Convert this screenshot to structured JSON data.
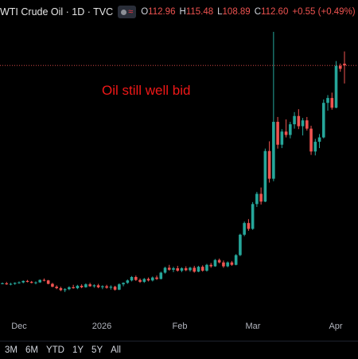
{
  "header": {
    "title": "WTI Crude Oil · 1D · TVC",
    "ohlc": [
      {
        "k": "O",
        "v": "112.96"
      },
      {
        "k": "H",
        "v": "115.48"
      },
      {
        "k": "L",
        "v": "108.89"
      },
      {
        "k": "C",
        "v": "112.60"
      }
    ],
    "change": "+0.55 (+0.49%)"
  },
  "annotation": "Oil still well bid",
  "range_buttons": [
    "3M",
    "6M",
    "YTD",
    "1Y",
    "5Y",
    "All"
  ],
  "colors": {
    "up": "#26a69a",
    "down": "#ef5350",
    "annotation": "#f01818",
    "background": "#000000"
  },
  "chart_data": {
    "type": "candlestick",
    "x_ticks": [
      "Dec",
      "2026",
      "Feb",
      "Mar",
      "Apr"
    ],
    "reference_line": 112.6,
    "candles": [
      [
        67.8,
        68.0,
        67.6,
        67.8
      ],
      [
        67.8,
        68.1,
        67.5,
        67.6
      ],
      [
        67.6,
        67.9,
        67.4,
        67.7
      ],
      [
        67.7,
        68.0,
        67.5,
        67.9
      ],
      [
        67.9,
        68.2,
        67.7,
        68.0
      ],
      [
        68.0,
        68.4,
        67.8,
        68.3
      ],
      [
        68.3,
        68.5,
        68.0,
        68.1
      ],
      [
        68.1,
        68.3,
        67.8,
        67.9
      ],
      [
        67.9,
        68.2,
        67.6,
        68.0
      ],
      [
        68.0,
        68.6,
        67.9,
        68.5
      ],
      [
        68.5,
        68.8,
        68.2,
        68.4
      ],
      [
        68.4,
        68.5,
        67.6,
        67.7
      ],
      [
        67.7,
        67.9,
        67.0,
        67.1
      ],
      [
        67.1,
        67.4,
        66.6,
        66.8
      ],
      [
        66.8,
        67.1,
        66.2,
        66.4
      ],
      [
        66.4,
        66.8,
        66.0,
        66.6
      ],
      [
        66.6,
        67.2,
        66.4,
        67.0
      ],
      [
        67.0,
        67.5,
        66.7,
        66.8
      ],
      [
        66.8,
        67.5,
        66.6,
        67.3
      ],
      [
        67.3,
        67.6,
        66.8,
        67.0
      ],
      [
        67.0,
        67.8,
        66.9,
        67.6
      ],
      [
        67.6,
        67.9,
        67.1,
        67.2
      ],
      [
        67.2,
        67.6,
        66.9,
        67.4
      ],
      [
        67.4,
        67.7,
        66.8,
        67.0
      ],
      [
        67.0,
        67.4,
        66.6,
        67.2
      ],
      [
        67.2,
        67.5,
        66.7,
        66.9
      ],
      [
        66.9,
        67.4,
        66.5,
        67.1
      ],
      [
        67.1,
        67.3,
        66.3,
        66.5
      ],
      [
        66.5,
        67.8,
        66.4,
        67.6
      ],
      [
        67.6,
        68.0,
        67.2,
        67.9
      ],
      [
        67.9,
        68.6,
        67.7,
        68.4
      ],
      [
        68.4,
        69.3,
        68.2,
        69.1
      ],
      [
        69.1,
        69.4,
        68.3,
        68.5
      ],
      [
        68.5,
        68.8,
        67.9,
        68.1
      ],
      [
        68.1,
        68.9,
        67.9,
        68.7
      ],
      [
        68.7,
        69.0,
        68.2,
        68.4
      ],
      [
        68.4,
        69.2,
        68.2,
        69.0
      ],
      [
        69.0,
        69.4,
        68.5,
        68.7
      ],
      [
        68.7,
        70.2,
        68.6,
        70.0
      ],
      [
        70.0,
        71.2,
        69.8,
        71.0
      ],
      [
        71.0,
        71.6,
        70.4,
        70.6
      ],
      [
        70.6,
        71.2,
        70.1,
        70.9
      ],
      [
        70.9,
        71.4,
        70.2,
        70.4
      ],
      [
        70.4,
        71.1,
        70.1,
        70.9
      ],
      [
        70.9,
        71.3,
        70.3,
        70.5
      ],
      [
        70.5,
        71.2,
        70.2,
        71.0
      ],
      [
        71.0,
        71.4,
        70.0,
        70.2
      ],
      [
        70.2,
        71.4,
        70.1,
        71.2
      ],
      [
        71.2,
        71.5,
        70.2,
        70.4
      ],
      [
        70.4,
        71.8,
        70.2,
        71.6
      ],
      [
        71.6,
        72.0,
        71.0,
        71.3
      ],
      [
        71.3,
        72.8,
        71.2,
        72.6
      ],
      [
        72.6,
        72.9,
        71.9,
        72.1
      ],
      [
        72.1,
        72.5,
        71.0,
        71.3
      ],
      [
        71.3,
        72.3,
        71.1,
        72.1
      ],
      [
        72.1,
        72.4,
        71.4,
        71.6
      ],
      [
        71.6,
        73.8,
        71.5,
        73.6
      ],
      [
        73.6,
        78.0,
        73.4,
        77.8
      ],
      [
        77.8,
        80.5,
        77.5,
        80.2
      ],
      [
        80.2,
        81.0,
        78.6,
        79.0
      ],
      [
        79.0,
        84.5,
        78.8,
        84.1
      ],
      [
        84.1,
        86.6,
        83.5,
        86.2
      ],
      [
        86.2,
        87.5,
        84.0,
        84.6
      ],
      [
        84.6,
        95.5,
        84.5,
        95.0
      ],
      [
        95.0,
        97.0,
        88.5,
        89.3
      ],
      [
        89.3,
        119.5,
        88.8,
        101.0
      ],
      [
        101.0,
        102.0,
        95.5,
        96.3
      ],
      [
        96.3,
        99.5,
        95.6,
        99.0
      ],
      [
        99.0,
        101.5,
        97.8,
        98.3
      ],
      [
        98.3,
        101.0,
        97.6,
        100.5
      ],
      [
        100.5,
        103.0,
        99.6,
        102.2
      ],
      [
        102.2,
        103.6,
        99.5,
        100.1
      ],
      [
        100.1,
        101.8,
        98.2,
        101.3
      ],
      [
        101.3,
        102.0,
        99.2,
        99.6
      ],
      [
        99.6,
        100.2,
        94.2,
        94.9
      ],
      [
        94.9,
        97.5,
        94.1,
        96.9
      ],
      [
        96.9,
        98.5,
        95.6,
        97.8
      ],
      [
        97.8,
        105.6,
        97.6,
        104.9
      ],
      [
        104.9,
        106.5,
        103.3,
        105.9
      ],
      [
        105.9,
        107.0,
        103.5,
        103.9
      ],
      [
        103.9,
        113.5,
        103.8,
        112.5
      ],
      [
        112.5,
        113.0,
        111.3,
        111.9
      ],
      [
        112.96,
        115.48,
        108.89,
        112.6
      ]
    ]
  }
}
